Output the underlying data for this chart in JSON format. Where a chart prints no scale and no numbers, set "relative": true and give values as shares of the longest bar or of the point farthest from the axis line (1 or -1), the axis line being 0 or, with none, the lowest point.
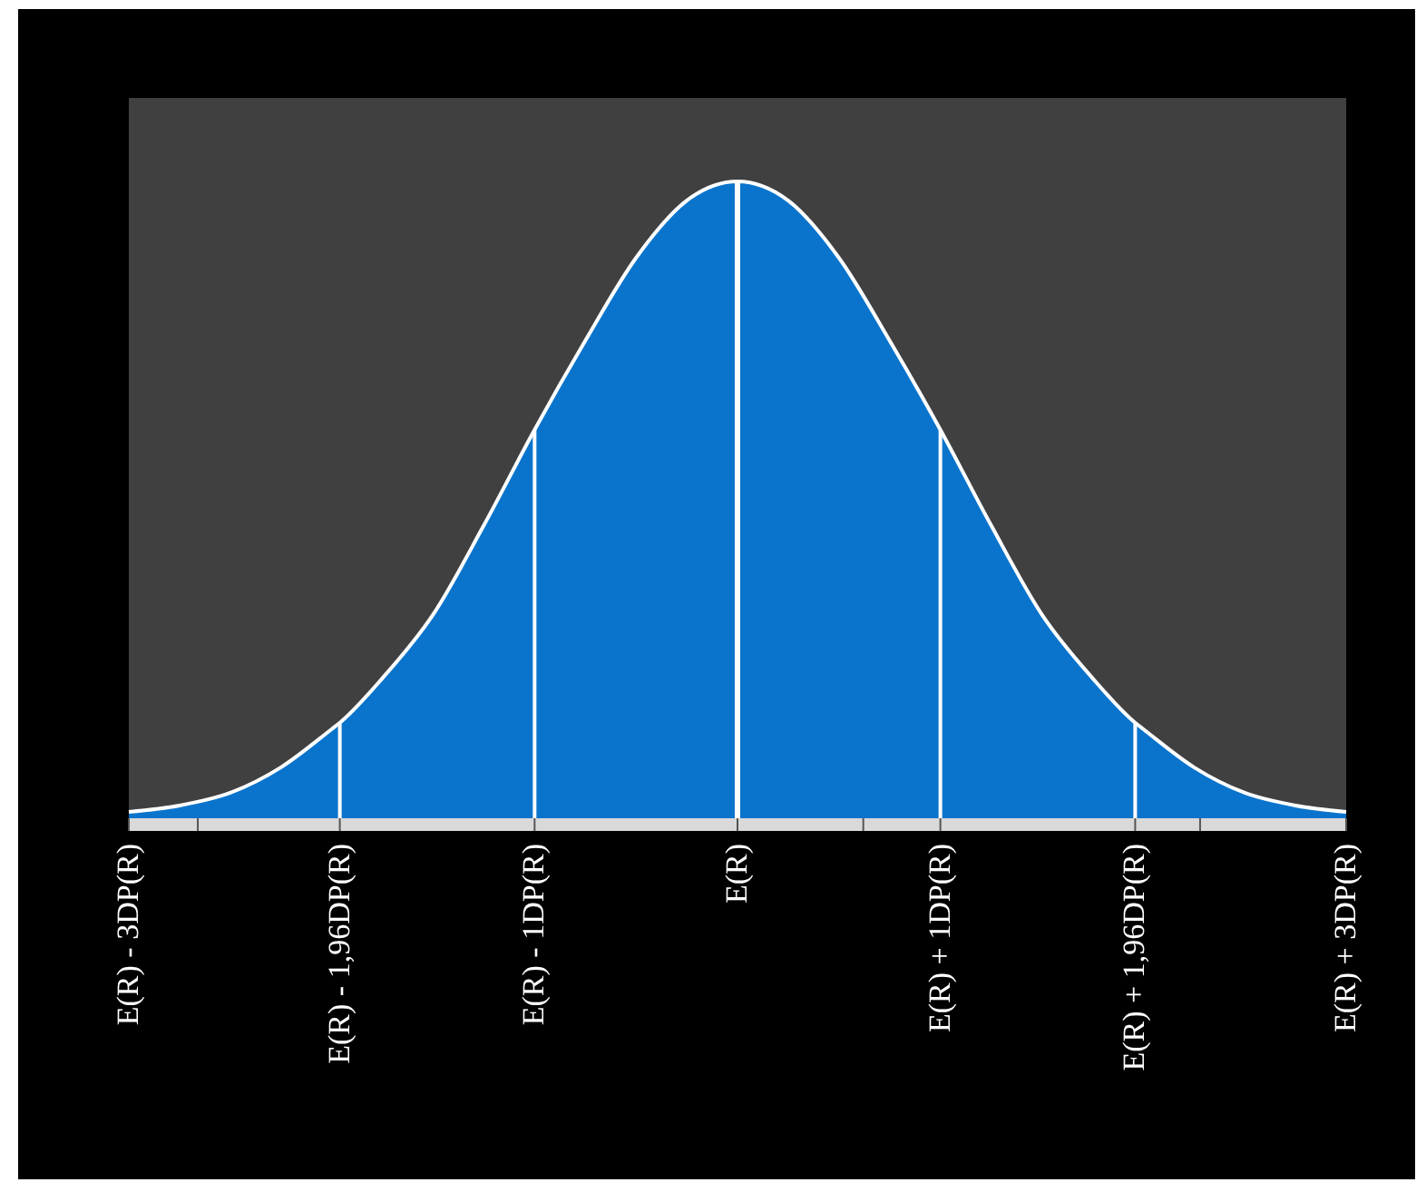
{
  "chart_data": {
    "type": "area",
    "relative": true,
    "x": [
      -3,
      -2.75,
      -2.5,
      -2.25,
      -2,
      -1.96,
      -1.75,
      -1.5,
      -1.25,
      -1,
      -0.75,
      -0.5,
      -0.25,
      0,
      0.25,
      0.5,
      0.75,
      1,
      1.25,
      1.5,
      1.75,
      1.96,
      2,
      2.25,
      2.5,
      2.75,
      3
    ],
    "values": [
      0.01,
      0.02,
      0.04,
      0.08,
      0.14,
      0.15,
      0.22,
      0.32,
      0.46,
      0.61,
      0.75,
      0.88,
      0.97,
      1,
      0.97,
      0.88,
      0.75,
      0.61,
      0.46,
      0.32,
      0.22,
      0.15,
      0.14,
      0.08,
      0.04,
      0.02,
      0.01
    ],
    "color": "#0a74cc",
    "xlim": [
      -3,
      3
    ],
    "xticks": [
      {
        "value": -3,
        "label": "E(R) - 3DP(R)"
      },
      {
        "value": -2.66,
        "label": null
      },
      {
        "value": -1.96,
        "label": "E(R) - 1,96DP(R)"
      },
      {
        "value": -1,
        "label": "E(R) - 1DP(R)"
      },
      {
        "value": 0,
        "label": "E(R)"
      },
      {
        "value": 0.62,
        "label": null
      },
      {
        "value": 1,
        "label": "E(R) + 1DP(R)"
      },
      {
        "value": 1.96,
        "label": "E(R) + 1,96DP(R)"
      },
      {
        "value": 2.28,
        "label": null
      },
      {
        "value": 3,
        "label": "E(R) + 3DP(R)"
      }
    ],
    "ref_lines": [
      {
        "axis": "x",
        "value": -1.96,
        "color": "#ffffff"
      },
      {
        "axis": "x",
        "value": -1,
        "color": "#ffffff"
      },
      {
        "axis": "x",
        "value": 0,
        "color": "#ffffff"
      },
      {
        "axis": "x",
        "value": 1,
        "color": "#ffffff"
      },
      {
        "axis": "x",
        "value": 1.96,
        "color": "#ffffff"
      }
    ],
    "grid": false
  }
}
